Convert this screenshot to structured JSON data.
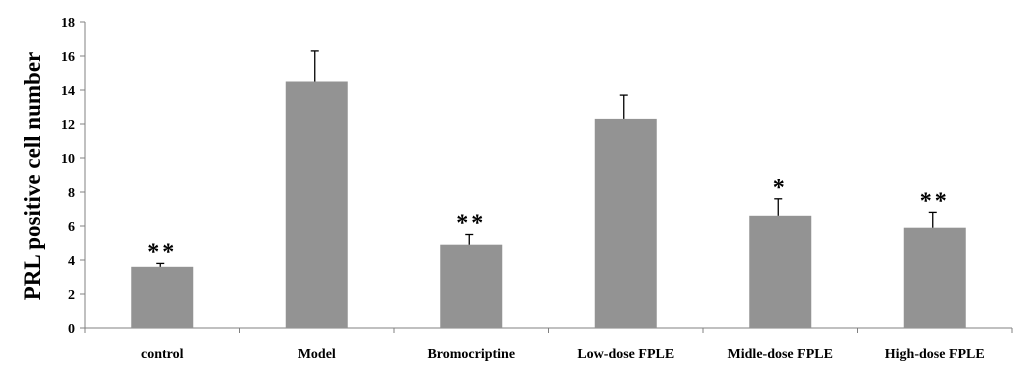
{
  "chart_data": {
    "type": "bar",
    "ylabel": "PRL positive cell number",
    "xlabel": "",
    "ylim": [
      0,
      18
    ],
    "yticks": [
      "0",
      "2",
      "4",
      "6",
      "8",
      "10",
      "12",
      "14",
      "16",
      "18"
    ],
    "categories": [
      "control",
      "Model",
      "Bromocriptine",
      "Low-dose FPLE",
      "Midle-dose FPLE",
      "High-dose FPLE"
    ],
    "values": [
      3.6,
      14.5,
      4.9,
      12.3,
      6.6,
      5.9
    ],
    "errors": [
      0.2,
      1.8,
      0.6,
      1.4,
      1.0,
      0.9
    ],
    "significance": [
      "**",
      "",
      "**",
      "",
      "*",
      "**"
    ],
    "bar_color": "#939393",
    "grid": false,
    "legend": "none"
  }
}
